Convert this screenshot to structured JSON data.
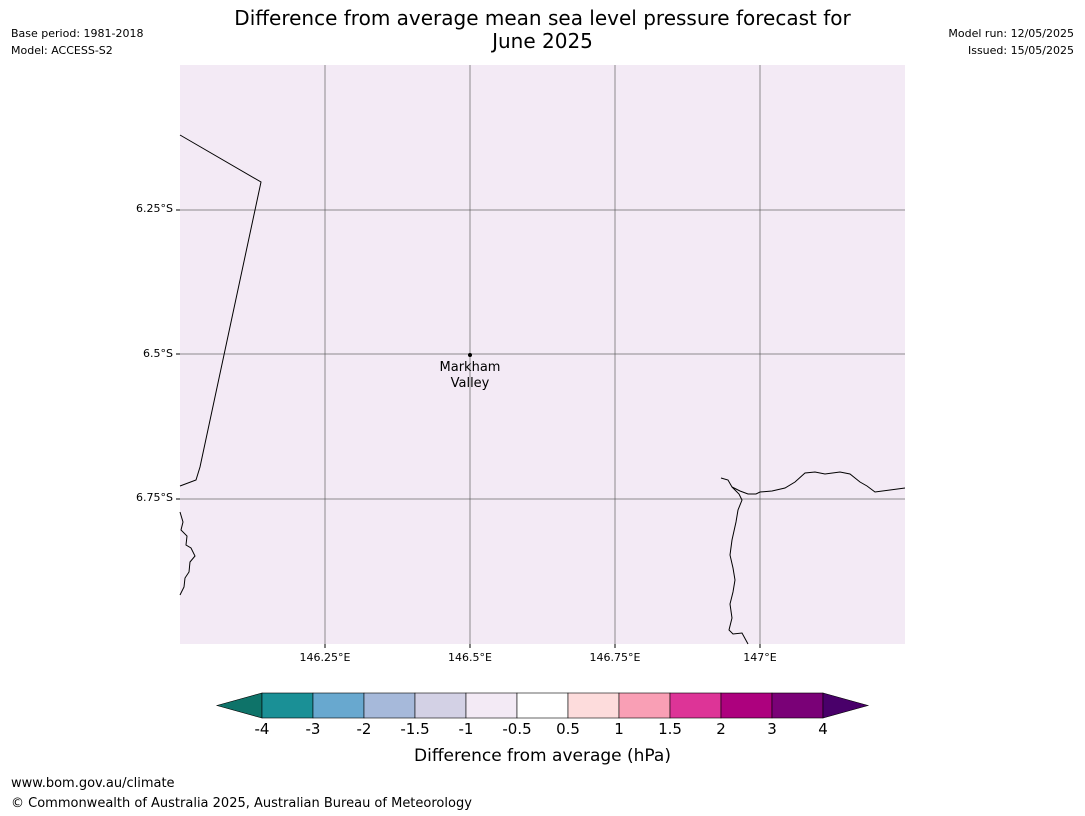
{
  "header": {
    "title_line1": "Difference from average mean sea level pressure forecast for",
    "title_line2": "June 2025",
    "base_period": "Base period: 1981-2018",
    "model": "Model: ACCESS-S2",
    "model_run": "Model run: 12/05/2025",
    "issued": "Issued: 15/05/2025"
  },
  "map": {
    "background_color": "#f3eaf5",
    "latitude_labels": [
      "6.25°S",
      "6.5°S",
      "6.75°S"
    ],
    "longitude_labels": [
      "146.25°E",
      "146.5°E",
      "146.75°E",
      "147°E"
    ],
    "place": {
      "name_line1": "Markham",
      "name_line2": "Valley"
    }
  },
  "colorbar": {
    "title": "Difference from average (hPa)",
    "tick_labels": [
      "-4",
      "-3",
      "-2",
      "-1.5",
      "-1",
      "-0.5",
      "0.5",
      "1",
      "1.5",
      "2",
      "3",
      "4"
    ],
    "colors": [
      "#0e7369",
      "#1a9096",
      "#68a8cf",
      "#a6b9da",
      "#d3d1e5",
      "#f3eaf5",
      "#ffffff",
      "#fddcdc",
      "#f99fb5",
      "#dd3497",
      "#ad017e",
      "#7a0177",
      "#49006a"
    ]
  },
  "footer": {
    "url": "www.bom.gov.au/climate",
    "copyright": "© Commonwealth of Australia 2025, Australian Bureau of Meteorology"
  }
}
